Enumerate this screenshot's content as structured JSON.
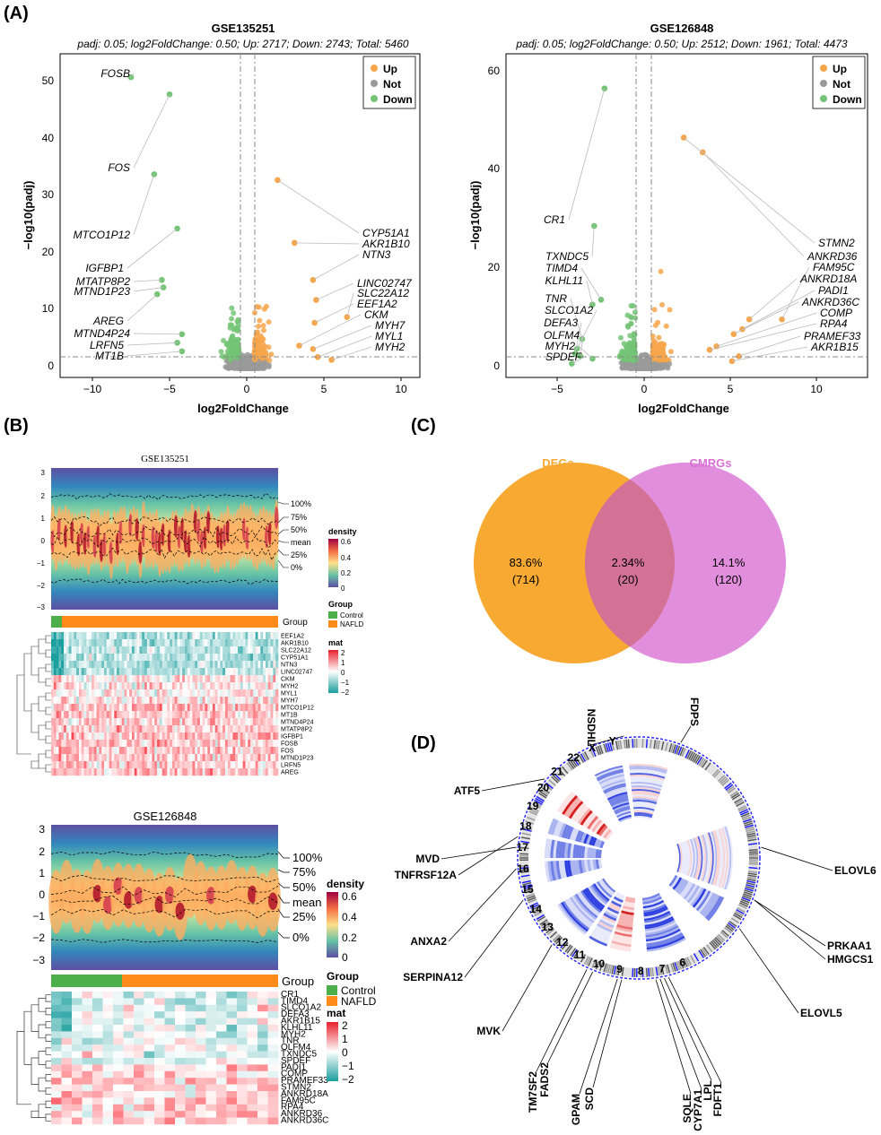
{
  "panels": {
    "A": "(A)",
    "B": "(B)",
    "C": "(C)",
    "D": "(D)"
  },
  "volcano_left": {
    "title": "GSE135251",
    "subtitle": "padj: 0.05; log2FoldChange: 0.50; Up: 2717; Down: 2743; Total: 5460",
    "xlabel": "log2FoldChange",
    "ylabel": "−log10(padj)",
    "xticks": [
      "−10",
      "−5",
      "0",
      "5",
      "10"
    ],
    "yticks": [
      "0",
      "10",
      "20",
      "30",
      "40",
      "50"
    ],
    "legend": [
      "Up",
      "Not",
      "Down"
    ],
    "genes_left": [
      "FOSB",
      "FOS",
      "MTCO1P12",
      "IGFBP1",
      "MTATP8P2",
      "MTND1P23",
      "AREG",
      "MTND4P24",
      "LRFN5",
      "MT1B"
    ],
    "genes_right": [
      "CYP51A1",
      "AKR1B10",
      "NTN3",
      "LINC02747",
      "SLC22A12",
      "EEF1A2",
      "CKM",
      "MYH7",
      "MYL1",
      "MYH2"
    ]
  },
  "volcano_right": {
    "title": "GSE126848",
    "subtitle": "padj: 0.05; log2FoldChange: 0.50; Up: 2512; Down: 1961; Total: 4473",
    "xlabel": "log2FoldChange",
    "ylabel": "−log10(padj)",
    "xticks": [
      "−5",
      "0",
      "5",
      "10"
    ],
    "yticks": [
      "0",
      "20",
      "40",
      "60"
    ],
    "legend": [
      "Up",
      "Not",
      "Down"
    ],
    "genes_left": [
      "CR1",
      "TXNDC5",
      "TIMD4",
      "KLHL11",
      "TNR",
      "SLCO1A2",
      "DEFA3",
      "OLFM4",
      "MYH2",
      "SPDEF"
    ],
    "genes_right": [
      "STMN2",
      "ANKRD36",
      "FAM95C",
      "ANKRD18A",
      "PADI1",
      "ANKRD36C",
      "COMP",
      "RPA4",
      "PRAMEF33",
      "AKR1B15"
    ]
  },
  "heatmap_top": {
    "title": "GSE135251",
    "yticks": [
      "3",
      "2",
      "1",
      "0",
      "−1",
      "−2",
      "−3"
    ],
    "quantiles": [
      "100%",
      "75%",
      "50%",
      "mean",
      "25%",
      "0%"
    ],
    "density_title": "density",
    "density_ticks": [
      "0.6",
      "0.4",
      "0.2",
      "0"
    ],
    "group_title": "Group",
    "group_label": "Group",
    "groups": [
      "Control",
      "NAFLD"
    ],
    "mat_title": "mat",
    "mat_ticks": [
      "2",
      "1",
      "0",
      "−1",
      "−2"
    ],
    "genes": [
      "EEF1A2",
      "AKR1B10",
      "SLC22A12",
      "CYP51A1",
      "NTN3",
      "LINC02747",
      "CKM",
      "MYH2",
      "MYL1",
      "MYH7",
      "MTCO1P12",
      "MT1B",
      "MTND4P24",
      "MTATP8P2",
      "IGFBP1",
      "FOSB",
      "FOS",
      "MTND1P23",
      "LRFN5",
      "AREG"
    ]
  },
  "heatmap_bottom": {
    "title": "GSE126848",
    "yticks": [
      "3",
      "2",
      "1",
      "0",
      "−1",
      "−2",
      "−3"
    ],
    "quantiles": [
      "100%",
      "75%",
      "50%",
      "mean",
      "25%",
      "0%"
    ],
    "density_title": "density",
    "density_ticks": [
      "0.6",
      "0.4",
      "0.2",
      "0"
    ],
    "group_title": "Group",
    "group_label": "Group",
    "groups": [
      "Control",
      "NAFLD"
    ],
    "mat_title": "mat",
    "mat_ticks": [
      "2",
      "1",
      "0",
      "−1",
      "−2"
    ],
    "genes": [
      "CR1",
      "TIMD4",
      "SLCO1A2",
      "DEFA3",
      "AKR1B15",
      "KLHL11",
      "MYH2",
      "TNR",
      "OLFM4",
      "TXNDC5",
      "SPDEF",
      "PADI1",
      "COMP",
      "PRAMEF33",
      "STMN2",
      "ANKRD18A",
      "FAM95C",
      "RPA4",
      "ANKRD36",
      "ANKRD36C"
    ]
  },
  "venn": {
    "left_label": "DEGs",
    "right_label": "CMRGs",
    "left_pct": "83.6%",
    "left_count": "(714)",
    "mid_pct": "2.34%",
    "mid_count": "(20)",
    "right_pct": "14.1%",
    "right_count": "(120)",
    "left_color": "#F7A931",
    "right_color": "#D96FD4"
  },
  "circos": {
    "genes": [
      "NSDHL",
      "FDPS",
      "ATF5",
      "ELOVL6",
      "MVD",
      "TNFRSF12A",
      "ANXA2",
      "PRKAA1",
      "HMGCS1",
      "SERPINA12",
      "ELOVL5",
      "MVK",
      "TM7SF2",
      "FADS2",
      "GPAM",
      "SCD",
      "SQLE",
      "CYP7A1",
      "LPL",
      "FDFT1"
    ],
    "chroms": [
      "Y",
      "X",
      "22",
      "21",
      "20",
      "19",
      "18",
      "17",
      "16",
      "15",
      "14",
      "13",
      "12",
      "11",
      "10",
      "9",
      "8",
      "7",
      "6"
    ]
  },
  "chart_data": [
    {
      "type": "scatter",
      "title": "GSE135251",
      "xlabel": "log2FoldChange",
      "ylabel": "-log10(padj)",
      "xlim": [
        -12,
        12
      ],
      "ylim": [
        0,
        53
      ],
      "series": [
        {
          "name": "Down",
          "points": [
            [
              -7.5,
              51
            ],
            [
              -5,
              48
            ],
            [
              -6,
              34
            ],
            [
              -4.5,
              24.5
            ],
            [
              -5.5,
              15.5
            ],
            [
              -5.4,
              14.2
            ],
            [
              -5.8,
              13
            ],
            [
              -4.2,
              6
            ],
            [
              -4.5,
              4.5
            ],
            [
              -4.2,
              3
            ]
          ]
        },
        {
          "name": "Up",
          "points": [
            [
              2,
              33
            ],
            [
              3.1,
              22
            ],
            [
              4.3,
              15.5
            ],
            [
              4.5,
              12
            ],
            [
              6.5,
              9
            ],
            [
              4.4,
              8
            ],
            [
              3.4,
              4
            ],
            [
              4.3,
              3.4
            ],
            [
              4.6,
              2
            ],
            [
              5.5,
              1.5
            ]
          ]
        }
      ]
    },
    {
      "type": "scatter",
      "title": "GSE126848",
      "xlabel": "log2FoldChange",
      "ylabel": "-log10(padj)",
      "xlim": [
        -7,
        13
      ],
      "ylim": [
        0,
        63
      ],
      "series": [
        {
          "name": "Down",
          "points": [
            [
              -2.3,
              57
            ],
            [
              -2.9,
              29
            ],
            [
              -2.5,
              14
            ],
            [
              -3,
              13
            ],
            [
              -3.6,
              6
            ],
            [
              -3.9,
              4
            ],
            [
              -4,
              3
            ],
            [
              -3.7,
              2.5
            ],
            [
              -3,
              2
            ],
            [
              -4.2,
              1
            ]
          ]
        },
        {
          "name": "Up",
          "points": [
            [
              2.3,
              47
            ],
            [
              3.4,
              44
            ],
            [
              8,
              10
            ],
            [
              6.1,
              10
            ],
            [
              5.7,
              8
            ],
            [
              5.2,
              7
            ],
            [
              4.2,
              4.5
            ],
            [
              3.8,
              3.8
            ],
            [
              5.5,
              2.5
            ],
            [
              5.1,
              1.5
            ]
          ]
        }
      ]
    },
    {
      "type": "venn",
      "sets": [
        "DEGs",
        "CMRGs"
      ],
      "values": {
        "DEGs only": 714,
        "both": 20,
        "CMRGs only": 120
      },
      "percents": {
        "DEGs only": 83.6,
        "both": 2.34,
        "CMRGs only": 14.1
      }
    }
  ]
}
